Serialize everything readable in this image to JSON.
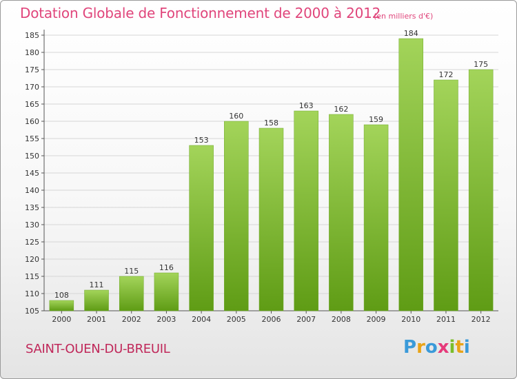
{
  "title": "Dotation Globale de Fonctionnement de 2000 à 2012",
  "subtitle": "(en milliers d'€)",
  "commune": "SAINT-OUEN-DU-BREUIL",
  "logo": {
    "letters": [
      "P",
      "r",
      "o",
      "x",
      "i",
      "t",
      "i"
    ],
    "colors": [
      "#3a9ad9",
      "#e8a317",
      "#3a9ad9",
      "#e63a7a",
      "#7bbd2a",
      "#e8a317",
      "#3a9ad9"
    ]
  },
  "colors": {
    "bar_light": "#a3d45a",
    "bar_dark": "#5f9c15",
    "title": "#e0457b",
    "commune": "#c0285a"
  },
  "chart_data": {
    "type": "bar",
    "categories": [
      "2000",
      "2001",
      "2002",
      "2003",
      "2004",
      "2005",
      "2006",
      "2007",
      "2008",
      "2009",
      "2010",
      "2011",
      "2012"
    ],
    "values": [
      108,
      111,
      115,
      116,
      153,
      160,
      158,
      163,
      162,
      159,
      184,
      172,
      175
    ],
    "data_labels": [
      "108",
      "111",
      "115",
      "116",
      "153",
      "160",
      "158",
      "163",
      "162",
      "159",
      "184",
      "172",
      "175"
    ],
    "ylim": [
      105,
      185
    ],
    "yticks": [
      105,
      110,
      115,
      120,
      125,
      130,
      135,
      140,
      145,
      150,
      155,
      160,
      165,
      170,
      175,
      180,
      185
    ],
    "ytick_labels": [
      "105",
      "110",
      "115",
      "120",
      "125",
      "130",
      "135",
      "140",
      "145",
      "150",
      "155",
      "160",
      "165",
      "170",
      "175",
      "180",
      "185"
    ],
    "grid": true,
    "xlabel": "",
    "ylabel": ""
  }
}
